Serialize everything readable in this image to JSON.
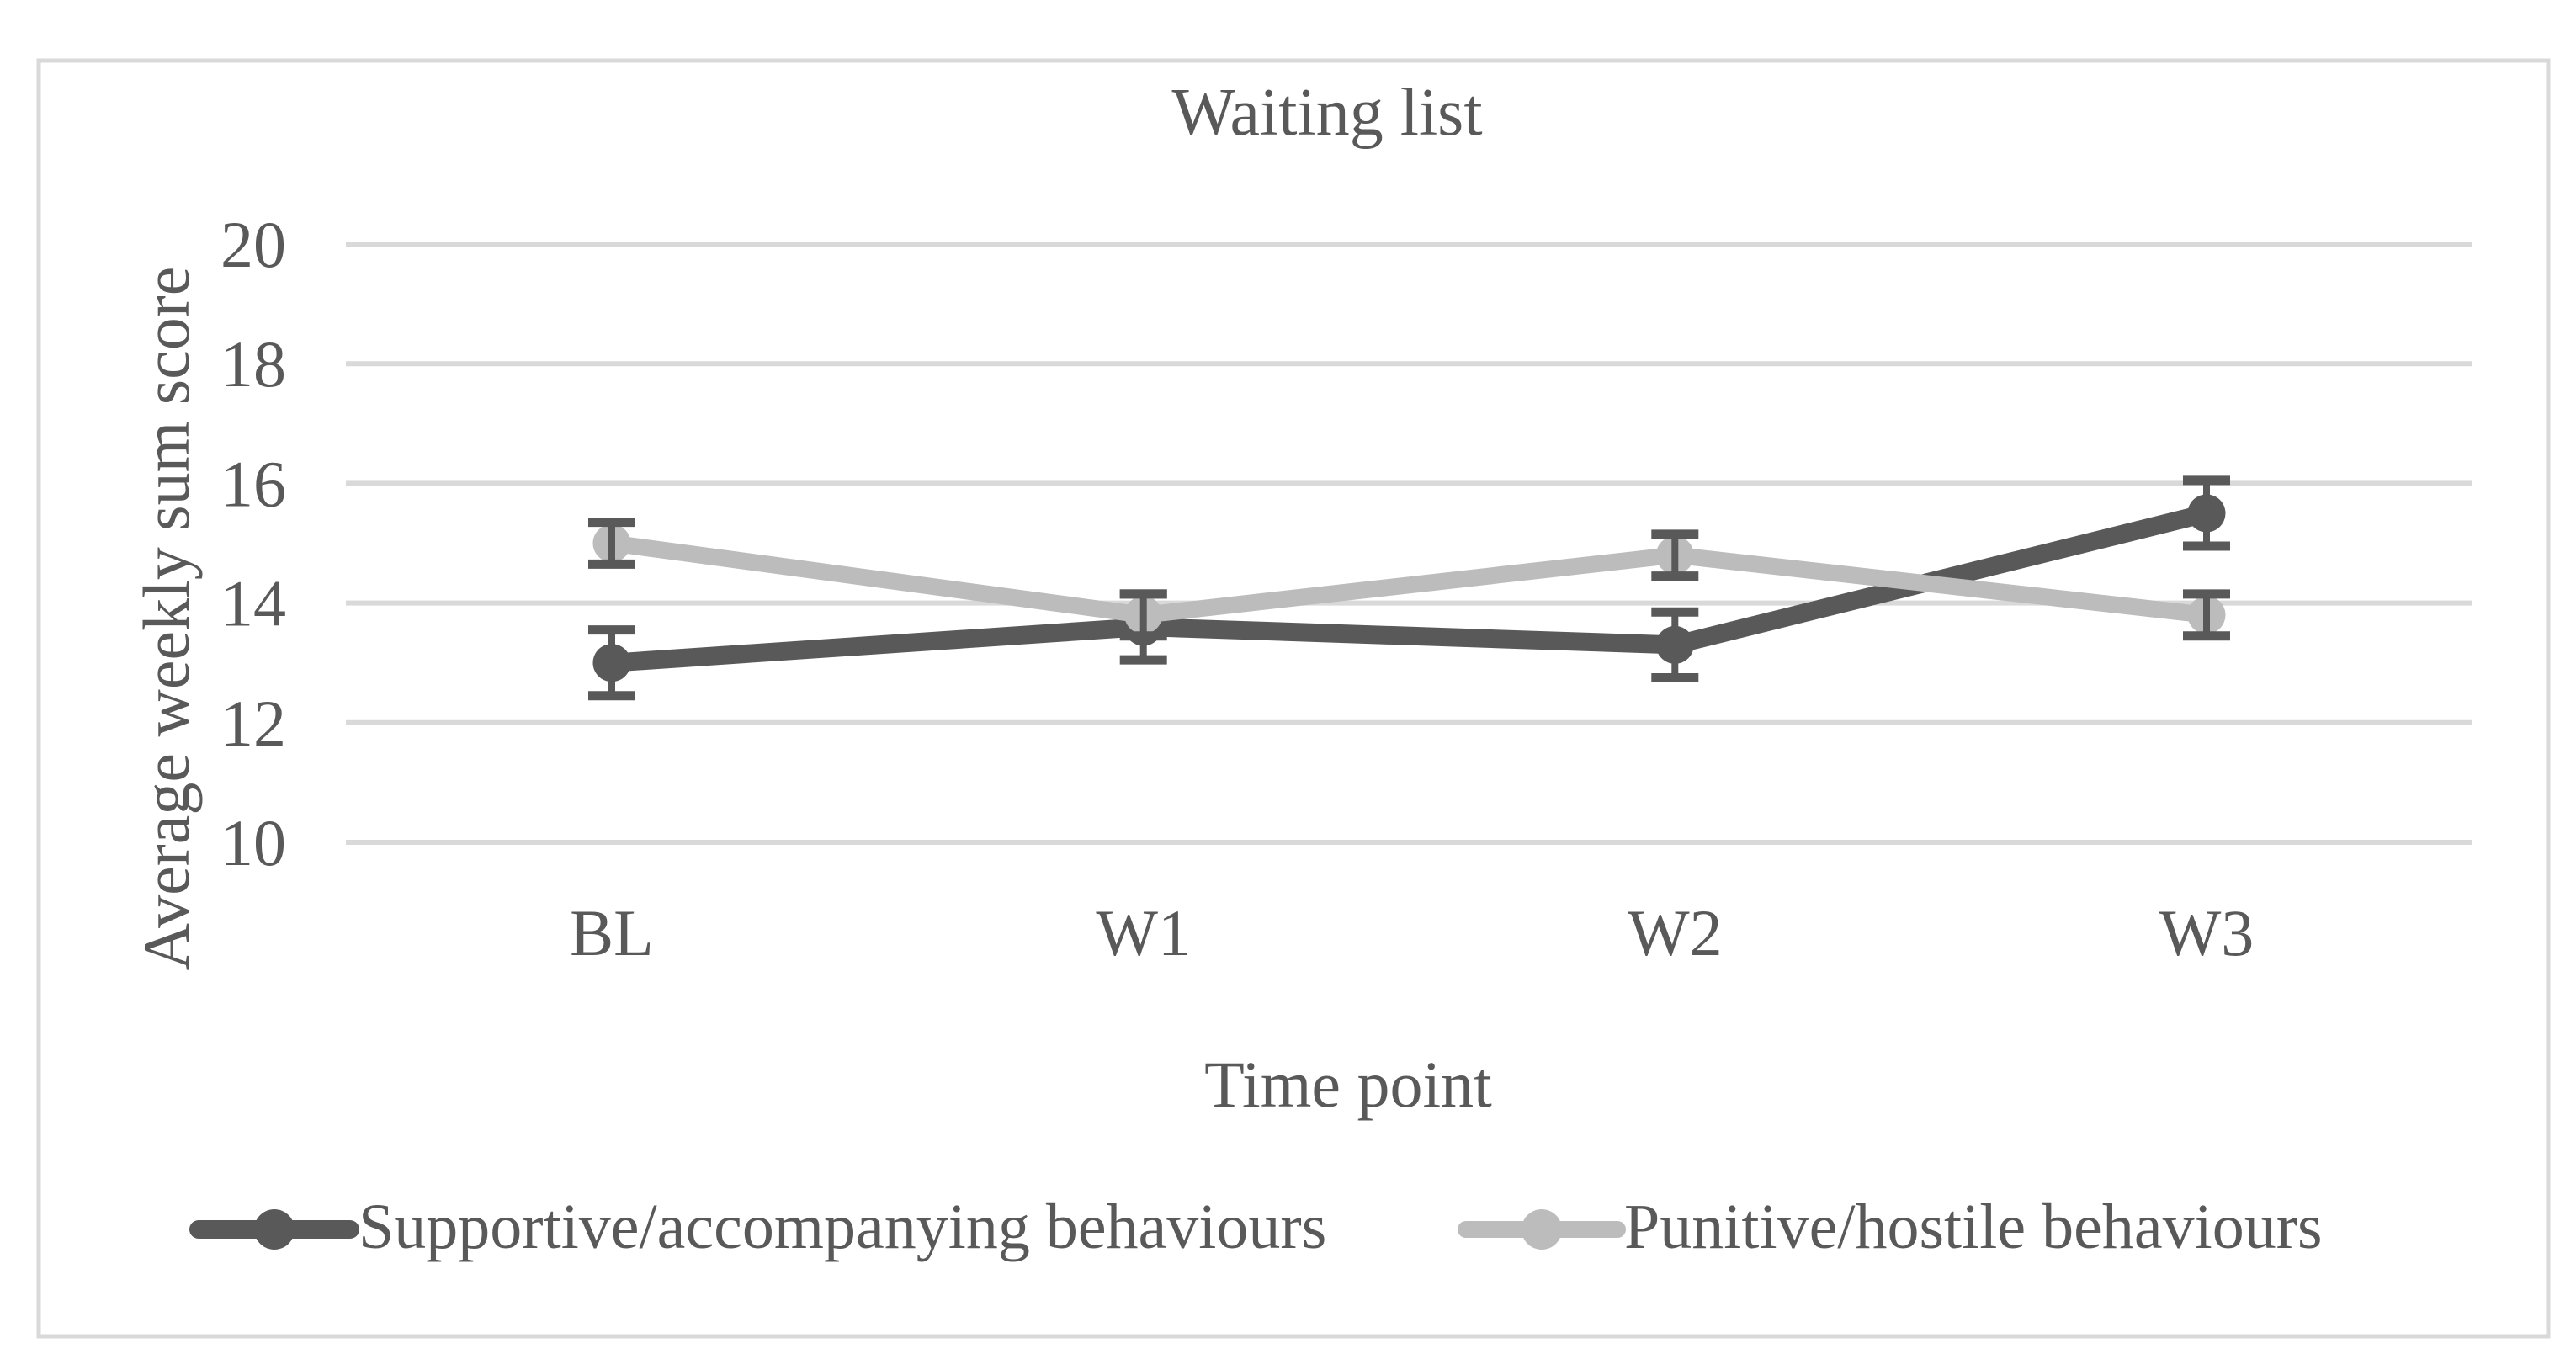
{
  "chart_data": {
    "type": "line",
    "title": "Waiting list",
    "xlabel": "Time point",
    "ylabel": "Average weekly sum score",
    "categories": [
      "BL",
      "W1",
      "W2",
      "W3"
    ],
    "y_ticks": [
      20,
      18,
      16,
      14,
      12,
      10
    ],
    "ylim": [
      10,
      20
    ],
    "grid": true,
    "legend_position": "bottom",
    "series": [
      {
        "name": "Supportive/accompanying behaviours",
        "values": [
          13.0,
          13.6,
          13.3,
          15.5
        ],
        "error": 0.55,
        "color": "#595959"
      },
      {
        "name": "Punitive/hostile behaviours",
        "values": [
          15.0,
          13.8,
          14.8,
          13.8
        ],
        "error": 0.35,
        "color": "#BCBCBC"
      }
    ],
    "error_bar_color": "#595959",
    "gridline_color": "#D9D9D9",
    "border_color": "#D9D9D9",
    "background": "#FFFFFF",
    "text_color": "#595959"
  }
}
